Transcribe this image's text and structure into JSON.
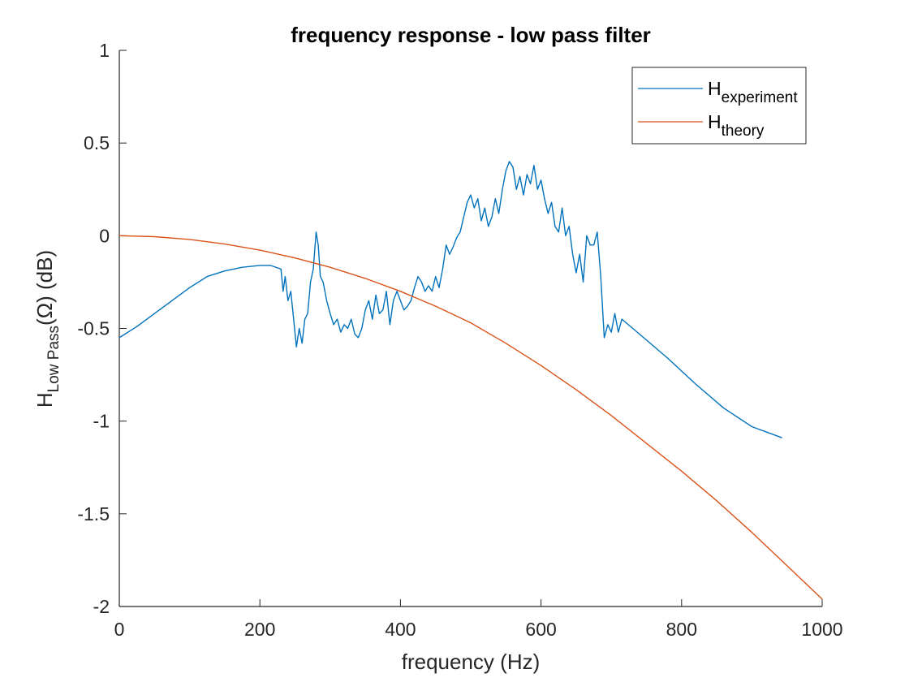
{
  "chart_data": {
    "type": "line",
    "title": "frequency response - low pass filter",
    "xlabel": "frequency (Hz)",
    "ylabel": {
      "main": "H",
      "subscript": "Low Pass",
      "rest": "(Ω) (dB)"
    },
    "xlim": [
      0,
      1000
    ],
    "ylim": [
      -2,
      1
    ],
    "xticks": [
      0,
      200,
      400,
      600,
      800,
      1000
    ],
    "xtick_labels": [
      "0",
      "200",
      "400",
      "600",
      "800",
      "1000"
    ],
    "yticks": [
      1,
      0.5,
      0,
      -0.5,
      -1,
      -1.5,
      -2
    ],
    "ytick_labels": [
      "1",
      "0.5",
      "0",
      "-0.5",
      "-1",
      "-1.5",
      "-2"
    ],
    "grid": false,
    "legend_position": "top-right",
    "series": [
      {
        "name": "H",
        "name_subscript": "experiment",
        "color": "#0072BD",
        "x": [
          0,
          25,
          50,
          75,
          100,
          125,
          150,
          175,
          200,
          215,
          230,
          233,
          236,
          240,
          244,
          248,
          252,
          256,
          260,
          264,
          268,
          272,
          276,
          280,
          283,
          286,
          290,
          295,
          300,
          305,
          310,
          315,
          320,
          325,
          330,
          335,
          340,
          345,
          350,
          355,
          360,
          365,
          370,
          375,
          380,
          385,
          390,
          395,
          400,
          405,
          410,
          415,
          420,
          425,
          430,
          435,
          440,
          445,
          450,
          455,
          460,
          465,
          470,
          475,
          480,
          485,
          490,
          495,
          500,
          505,
          510,
          515,
          520,
          525,
          530,
          535,
          540,
          545,
          550,
          555,
          560,
          565,
          570,
          575,
          580,
          585,
          590,
          595,
          600,
          605,
          610,
          615,
          620,
          625,
          630,
          635,
          640,
          645,
          650,
          655,
          660,
          665,
          670,
          675,
          680,
          685,
          690,
          695,
          700,
          705,
          710,
          715,
          740,
          780,
          820,
          860,
          900,
          943
        ],
        "y": [
          -0.55,
          -0.49,
          -0.42,
          -0.35,
          -0.28,
          -0.22,
          -0.19,
          -0.17,
          -0.16,
          -0.16,
          -0.18,
          -0.3,
          -0.22,
          -0.35,
          -0.3,
          -0.45,
          -0.6,
          -0.5,
          -0.58,
          -0.45,
          -0.42,
          -0.25,
          -0.18,
          0.02,
          -0.05,
          -0.22,
          -0.25,
          -0.35,
          -0.42,
          -0.48,
          -0.45,
          -0.52,
          -0.48,
          -0.5,
          -0.45,
          -0.53,
          -0.55,
          -0.5,
          -0.4,
          -0.35,
          -0.45,
          -0.32,
          -0.42,
          -0.4,
          -0.3,
          -0.48,
          -0.35,
          -0.3,
          -0.35,
          -0.4,
          -0.38,
          -0.35,
          -0.28,
          -0.22,
          -0.25,
          -0.3,
          -0.27,
          -0.3,
          -0.22,
          -0.28,
          -0.18,
          -0.05,
          -0.1,
          -0.06,
          -0.01,
          0.02,
          0.1,
          0.18,
          0.22,
          0.15,
          0.2,
          0.08,
          0.15,
          0.05,
          0.1,
          0.2,
          0.12,
          0.25,
          0.35,
          0.4,
          0.37,
          0.25,
          0.32,
          0.22,
          0.33,
          0.28,
          0.38,
          0.25,
          0.3,
          0.2,
          0.12,
          0.18,
          0.05,
          0.02,
          0.15,
          0.0,
          0.05,
          -0.1,
          -0.2,
          -0.1,
          -0.25,
          0.0,
          -0.05,
          -0.05,
          0.02,
          -0.22,
          -0.55,
          -0.48,
          -0.52,
          -0.42,
          -0.52,
          -0.45,
          -0.53,
          -0.66,
          -0.8,
          -0.93,
          -1.03,
          -1.09
        ]
      },
      {
        "name": "H",
        "name_subscript": "theory",
        "color": "#D95319",
        "x": [
          0,
          50,
          100,
          150,
          200,
          250,
          300,
          350,
          400,
          450,
          500,
          550,
          600,
          650,
          700,
          750,
          800,
          850,
          900,
          950,
          1000
        ],
        "y": [
          0,
          -0.005,
          -0.02,
          -0.045,
          -0.078,
          -0.12,
          -0.17,
          -0.23,
          -0.3,
          -0.38,
          -0.47,
          -0.58,
          -0.7,
          -0.83,
          -0.97,
          -1.12,
          -1.27,
          -1.43,
          -1.6,
          -1.78,
          -1.96
        ]
      }
    ]
  }
}
